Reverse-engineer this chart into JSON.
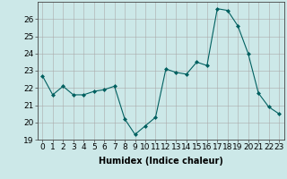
{
  "x": [
    0,
    1,
    2,
    3,
    4,
    5,
    6,
    7,
    8,
    9,
    10,
    11,
    12,
    13,
    14,
    15,
    16,
    17,
    18,
    19,
    20,
    21,
    22,
    23
  ],
  "y": [
    22.7,
    21.6,
    22.1,
    21.6,
    21.6,
    21.8,
    21.9,
    22.1,
    20.2,
    19.3,
    19.8,
    20.3,
    23.1,
    22.9,
    22.8,
    23.5,
    23.3,
    26.6,
    26.5,
    25.6,
    24.0,
    21.7,
    20.9,
    20.5
  ],
  "line_color": "#006060",
  "marker": "D",
  "marker_size": 2,
  "bg_color": "#cce8e8",
  "grid_color": "#aaaaaa",
  "xlabel": "Humidex (Indice chaleur)",
  "ylim": [
    19,
    27
  ],
  "xlim": [
    -0.5,
    23.5
  ],
  "yticks": [
    19,
    20,
    21,
    22,
    23,
    24,
    25,
    26
  ],
  "xticks": [
    0,
    1,
    2,
    3,
    4,
    5,
    6,
    7,
    8,
    9,
    10,
    11,
    12,
    13,
    14,
    15,
    16,
    17,
    18,
    19,
    20,
    21,
    22,
    23
  ],
  "xlabel_fontsize": 7,
  "tick_fontsize": 6.5
}
